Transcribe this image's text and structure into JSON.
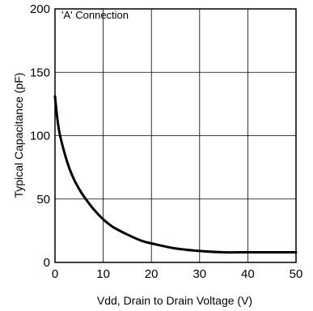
{
  "chart_data": {
    "type": "line",
    "title": "",
    "annotation": "'A' Connection",
    "xlabel": "Vdd, Drain to Drain Voltage (V)",
    "ylabel": "Typical Capacitance (pF)",
    "xlim": [
      0,
      50
    ],
    "ylim": [
      0,
      200
    ],
    "xticks": [
      "0",
      "10",
      "20",
      "30",
      "40",
      "50"
    ],
    "yticks": [
      "0",
      "50",
      "100",
      "150",
      "200"
    ],
    "grid": true,
    "legend": "none",
    "series": [
      {
        "x": [
          0,
          0.5,
          1,
          2,
          3,
          4,
          5,
          6,
          8,
          10,
          12,
          15,
          18,
          20,
          25,
          30,
          35,
          40,
          45,
          50
        ],
        "y": [
          131,
          113,
          101,
          86,
          74,
          65,
          58,
          52,
          42,
          34,
          28,
          22,
          17,
          15,
          11,
          9,
          8,
          8,
          8,
          8
        ],
        "color": "#000000"
      }
    ]
  }
}
